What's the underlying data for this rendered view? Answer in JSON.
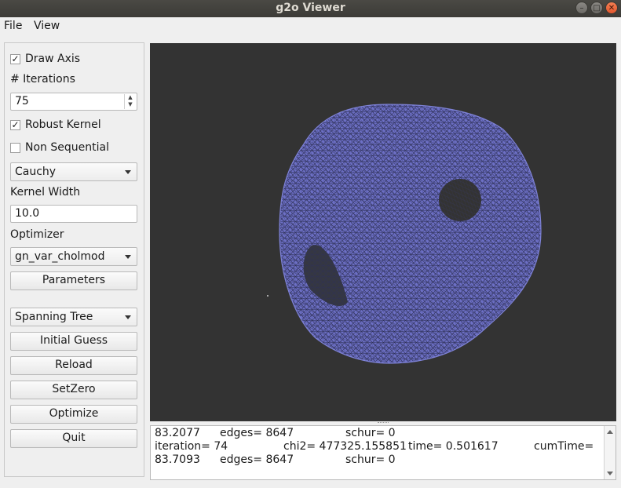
{
  "window": {
    "title": "g2o Viewer"
  },
  "menu": {
    "file": "File",
    "view": "View"
  },
  "controls": {
    "draw_axis": {
      "label": "Draw Axis",
      "checked": true
    },
    "iterations": {
      "label": "# Iterations",
      "value": "75"
    },
    "robust_kernel": {
      "label": "Robust Kernel",
      "checked": true
    },
    "non_sequential": {
      "label": "Non Sequential",
      "checked": false
    },
    "kernel": {
      "selected": "Cauchy"
    },
    "kernel_width": {
      "label": "Kernel Width",
      "value": "10.0"
    },
    "optimizer": {
      "label": "Optimizer",
      "selected": "gn_var_cholmod"
    },
    "parameters_label": "Parameters",
    "initial_guess_method": {
      "selected": "Spanning Tree"
    },
    "initial_guess_label": "Initial Guess",
    "reload_label": "Reload",
    "setzero_label": "SetZero",
    "optimize_label": "Optimize",
    "quit_label": "Quit"
  },
  "viewer": {
    "background_color": "#333333",
    "mesh_color": "#6b6ec4"
  },
  "log": {
    "line1": {
      "a": "83.2077",
      "b": "edges= 8647",
      "c": "schur= 0"
    },
    "line2": {
      "a": "iteration= 74",
      "b": "chi2= 477325.155851",
      "c": "time= 0.501617",
      "d": "cumTime="
    },
    "line3": {
      "a": "83.7093",
      "b": "edges= 8647",
      "c": "schur= 0"
    }
  },
  "icons": {
    "check": "checkmark-icon",
    "spin": "spin-arrows-icon",
    "combo": "chevron-down-icon"
  }
}
